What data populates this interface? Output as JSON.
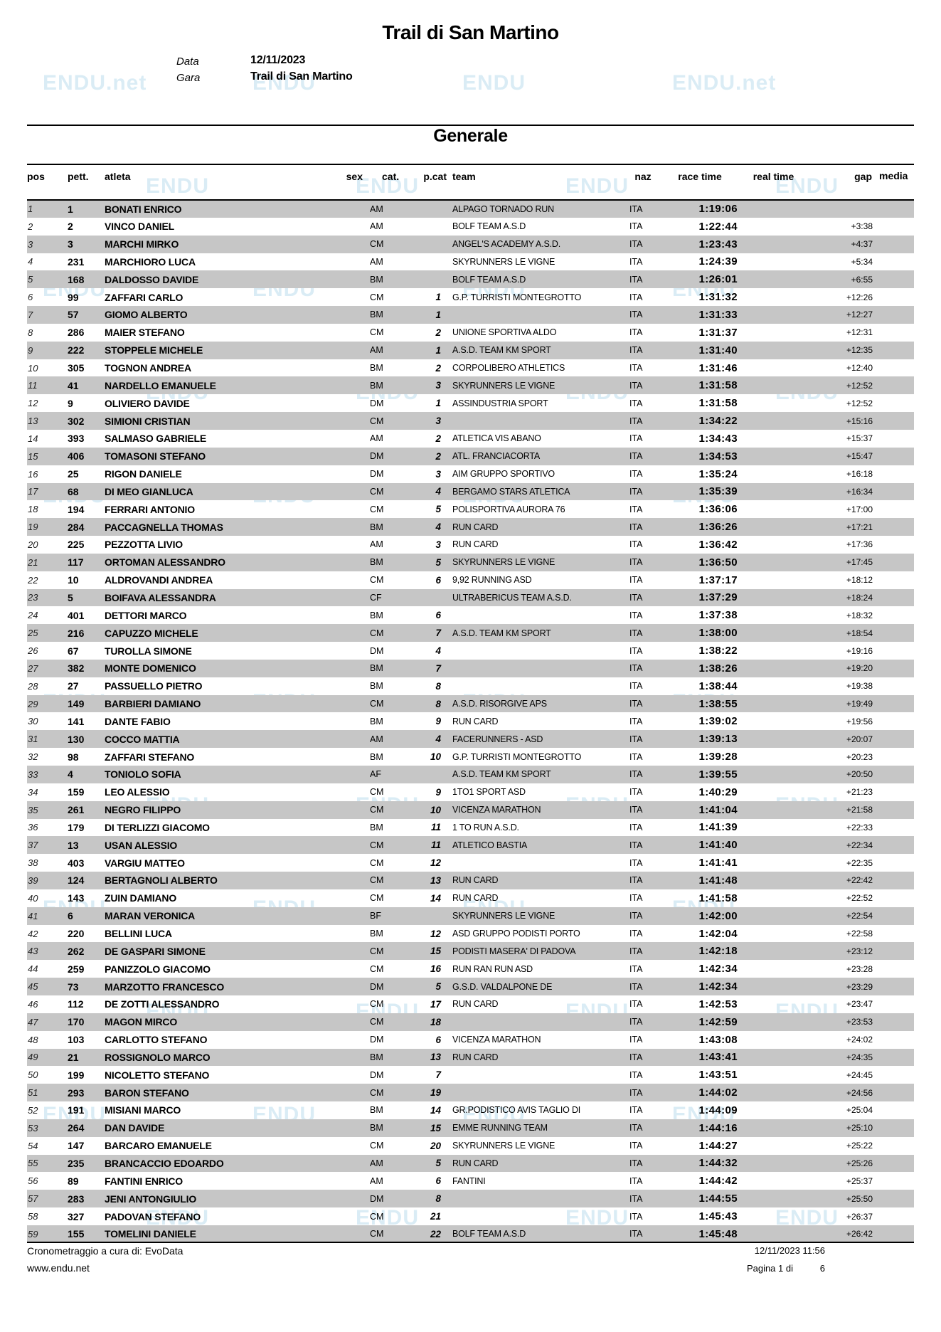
{
  "header": {
    "title": "Trail di San Martino",
    "date_label": "Data",
    "date_value": "12/11/2023",
    "race_label": "Gara",
    "race_value": "Trail di San Martino"
  },
  "section": {
    "title": "Generale"
  },
  "watermark": {
    "text": "ENDU",
    "corner_text": "ENDU.net"
  },
  "colors": {
    "row_stripe": "#c6c6c6",
    "watermark": "#9fcfe6"
  },
  "table": {
    "columns": [
      "pos",
      "pett.",
      "atleta",
      "sex",
      "cat.",
      "p.cat",
      "team",
      "naz",
      "race time",
      "real time",
      "gap",
      "media"
    ],
    "rows": [
      [
        "1",
        "1",
        "BONATI ENRICO",
        "",
        "AM",
        "",
        "ALPAGO TORNADO RUN",
        "ITA",
        "1:19:06",
        "",
        "",
        ""
      ],
      [
        "2",
        "2",
        "VINCO DANIEL",
        "",
        "AM",
        "",
        "BOLF TEAM A.S.D",
        "ITA",
        "1:22:44",
        "",
        "+3:38",
        ""
      ],
      [
        "3",
        "3",
        "MARCHI MIRKO",
        "",
        "CM",
        "",
        "ANGEL'S ACADEMY A.S.D.",
        "ITA",
        "1:23:43",
        "",
        "+4:37",
        ""
      ],
      [
        "4",
        "231",
        "MARCHIORO LUCA",
        "",
        "AM",
        "",
        "SKYRUNNERS LE VIGNE",
        "ITA",
        "1:24:39",
        "",
        "+5:34",
        ""
      ],
      [
        "5",
        "168",
        "DALDOSSO DAVIDE",
        "",
        "BM",
        "",
        "BOLF TEAM A.S.D",
        "ITA",
        "1:26:01",
        "",
        "+6:55",
        ""
      ],
      [
        "6",
        "99",
        "ZAFFARI CARLO",
        "",
        "CM",
        "1",
        "G.P. TURRISTI MONTEGROTTO",
        "ITA",
        "1:31:32",
        "",
        "+12:26",
        ""
      ],
      [
        "7",
        "57",
        "GIOMO ALBERTO",
        "",
        "BM",
        "1",
        "",
        "ITA",
        "1:31:33",
        "",
        "+12:27",
        ""
      ],
      [
        "8",
        "286",
        "MAIER STEFANO",
        "",
        "CM",
        "2",
        "UNIONE SPORTIVA ALDO",
        "ITA",
        "1:31:37",
        "",
        "+12:31",
        ""
      ],
      [
        "9",
        "222",
        "STOPPELE MICHELE",
        "",
        "AM",
        "1",
        "A.S.D. TEAM KM SPORT",
        "ITA",
        "1:31:40",
        "",
        "+12:35",
        ""
      ],
      [
        "10",
        "305",
        "TOGNON ANDREA",
        "",
        "BM",
        "2",
        "CORPOLIBERO ATHLETICS",
        "ITA",
        "1:31:46",
        "",
        "+12:40",
        ""
      ],
      [
        "11",
        "41",
        "NARDELLO EMANUELE",
        "",
        "BM",
        "3",
        "SKYRUNNERS LE VIGNE",
        "ITA",
        "1:31:58",
        "",
        "+12:52",
        ""
      ],
      [
        "12",
        "9",
        "OLIVIERO DAVIDE",
        "",
        "DM",
        "1",
        "ASSINDUSTRIA SPORT",
        "ITA",
        "1:31:58",
        "",
        "+12:52",
        ""
      ],
      [
        "13",
        "302",
        "SIMIONI CRISTIAN",
        "",
        "CM",
        "3",
        "",
        "ITA",
        "1:34:22",
        "",
        "+15:16",
        ""
      ],
      [
        "14",
        "393",
        "SALMASO GABRIELE",
        "",
        "AM",
        "2",
        "ATLETICA VIS ABANO",
        "ITA",
        "1:34:43",
        "",
        "+15:37",
        ""
      ],
      [
        "15",
        "406",
        "TOMASONI STEFANO",
        "",
        "DM",
        "2",
        "ATL. FRANCIACORTA",
        "ITA",
        "1:34:53",
        "",
        "+15:47",
        ""
      ],
      [
        "16",
        "25",
        "RIGON DANIELE",
        "",
        "DM",
        "3",
        "AIM GRUPPO SPORTIVO",
        "ITA",
        "1:35:24",
        "",
        "+16:18",
        ""
      ],
      [
        "17",
        "68",
        "DI MEO GIANLUCA",
        "",
        "CM",
        "4",
        "BERGAMO STARS ATLETICA",
        "ITA",
        "1:35:39",
        "",
        "+16:34",
        ""
      ],
      [
        "18",
        "194",
        "FERRARI ANTONIO",
        "",
        "CM",
        "5",
        "POLISPORTIVA AURORA 76",
        "ITA",
        "1:36:06",
        "",
        "+17:00",
        ""
      ],
      [
        "19",
        "284",
        "PACCAGNELLA THOMAS",
        "",
        "BM",
        "4",
        "RUN CARD",
        "ITA",
        "1:36:26",
        "",
        "+17:21",
        ""
      ],
      [
        "20",
        "225",
        "PEZZOTTA LIVIO",
        "",
        "AM",
        "3",
        "RUN CARD",
        "ITA",
        "1:36:42",
        "",
        "+17:36",
        ""
      ],
      [
        "21",
        "117",
        "ORTOMAN ALESSANDRO",
        "",
        "BM",
        "5",
        "SKYRUNNERS LE VIGNE",
        "ITA",
        "1:36:50",
        "",
        "+17:45",
        ""
      ],
      [
        "22",
        "10",
        "ALDROVANDI ANDREA",
        "",
        "CM",
        "6",
        "9,92 RUNNING ASD",
        "ITA",
        "1:37:17",
        "",
        "+18:12",
        ""
      ],
      [
        "23",
        "5",
        "BOIFAVA ALESSANDRA",
        "",
        "CF",
        "",
        "ULTRABERICUS TEAM A.S.D.",
        "ITA",
        "1:37:29",
        "",
        "+18:24",
        ""
      ],
      [
        "24",
        "401",
        "DETTORI MARCO",
        "",
        "BM",
        "6",
        "",
        "ITA",
        "1:37:38",
        "",
        "+18:32",
        ""
      ],
      [
        "25",
        "216",
        "CAPUZZO MICHELE",
        "",
        "CM",
        "7",
        "A.S.D. TEAM KM SPORT",
        "ITA",
        "1:38:00",
        "",
        "+18:54",
        ""
      ],
      [
        "26",
        "67",
        "TUROLLA SIMONE",
        "",
        "DM",
        "4",
        "",
        "ITA",
        "1:38:22",
        "",
        "+19:16",
        ""
      ],
      [
        "27",
        "382",
        "MONTE DOMENICO",
        "",
        "BM",
        "7",
        "",
        "ITA",
        "1:38:26",
        "",
        "+19:20",
        ""
      ],
      [
        "28",
        "27",
        "PASSUELLO PIETRO",
        "",
        "BM",
        "8",
        "",
        "ITA",
        "1:38:44",
        "",
        "+19:38",
        ""
      ],
      [
        "29",
        "149",
        "BARBIERI DAMIANO",
        "",
        "CM",
        "8",
        "A.S.D. RISORGIVE APS",
        "ITA",
        "1:38:55",
        "",
        "+19:49",
        ""
      ],
      [
        "30",
        "141",
        "DANTE FABIO",
        "",
        "BM",
        "9",
        "RUN CARD",
        "ITA",
        "1:39:02",
        "",
        "+19:56",
        ""
      ],
      [
        "31",
        "130",
        "COCCO MATTIA",
        "",
        "AM",
        "4",
        "FACERUNNERS - ASD",
        "ITA",
        "1:39:13",
        "",
        "+20:07",
        ""
      ],
      [
        "32",
        "98",
        "ZAFFARI STEFANO",
        "",
        "BM",
        "10",
        "G.P. TURRISTI MONTEGROTTO",
        "ITA",
        "1:39:28",
        "",
        "+20:23",
        ""
      ],
      [
        "33",
        "4",
        "TONIOLO SOFIA",
        "",
        "AF",
        "",
        "A.S.D. TEAM KM SPORT",
        "ITA",
        "1:39:55",
        "",
        "+20:50",
        ""
      ],
      [
        "34",
        "159",
        "LEO ALESSIO",
        "",
        "CM",
        "9",
        "1TO1 SPORT ASD",
        "ITA",
        "1:40:29",
        "",
        "+21:23",
        ""
      ],
      [
        "35",
        "261",
        "NEGRO FILIPPO",
        "",
        "CM",
        "10",
        "VICENZA MARATHON",
        "ITA",
        "1:41:04",
        "",
        "+21:58",
        ""
      ],
      [
        "36",
        "179",
        "DI TERLIZZI GIACOMO",
        "",
        "BM",
        "11",
        "1 TO RUN A.S.D.",
        "ITA",
        "1:41:39",
        "",
        "+22:33",
        ""
      ],
      [
        "37",
        "13",
        "USAN ALESSIO",
        "",
        "CM",
        "11",
        "ATLETICO BASTIA",
        "ITA",
        "1:41:40",
        "",
        "+22:34",
        ""
      ],
      [
        "38",
        "403",
        "VARGIU MATTEO",
        "",
        "CM",
        "12",
        "",
        "ITA",
        "1:41:41",
        "",
        "+22:35",
        ""
      ],
      [
        "39",
        "124",
        "BERTAGNOLI ALBERTO",
        "",
        "CM",
        "13",
        "RUN CARD",
        "ITA",
        "1:41:48",
        "",
        "+22:42",
        ""
      ],
      [
        "40",
        "143",
        "ZUIN DAMIANO",
        "",
        "CM",
        "14",
        "RUN CARD",
        "ITA",
        "1:41:58",
        "",
        "+22:52",
        ""
      ],
      [
        "41",
        "6",
        "MARAN VERONICA",
        "",
        "BF",
        "",
        "SKYRUNNERS LE VIGNE",
        "ITA",
        "1:42:00",
        "",
        "+22:54",
        ""
      ],
      [
        "42",
        "220",
        "BELLINI LUCA",
        "",
        "BM",
        "12",
        "ASD GRUPPO PODISTI PORTO",
        "ITA",
        "1:42:04",
        "",
        "+22:58",
        ""
      ],
      [
        "43",
        "262",
        "DE GASPARI SIMONE",
        "",
        "CM",
        "15",
        "PODISTI MASERA' DI PADOVA",
        "ITA",
        "1:42:18",
        "",
        "+23:12",
        ""
      ],
      [
        "44",
        "259",
        "PANIZZOLO GIACOMO",
        "",
        "CM",
        "16",
        "RUN RAN RUN ASD",
        "ITA",
        "1:42:34",
        "",
        "+23:28",
        ""
      ],
      [
        "45",
        "73",
        "MARZOTTO FRANCESCO",
        "",
        "DM",
        "5",
        "G.S.D. VALDALPONE DE",
        "ITA",
        "1:42:34",
        "",
        "+23:29",
        ""
      ],
      [
        "46",
        "112",
        "DE ZOTTI ALESSANDRO",
        "",
        "CM",
        "17",
        "RUN CARD",
        "ITA",
        "1:42:53",
        "",
        "+23:47",
        ""
      ],
      [
        "47",
        "170",
        "MAGON MIRCO",
        "",
        "CM",
        "18",
        "",
        "ITA",
        "1:42:59",
        "",
        "+23:53",
        ""
      ],
      [
        "48",
        "103",
        "CARLOTTO STEFANO",
        "",
        "DM",
        "6",
        "VICENZA MARATHON",
        "ITA",
        "1:43:08",
        "",
        "+24:02",
        ""
      ],
      [
        "49",
        "21",
        "ROSSIGNOLO MARCO",
        "",
        "BM",
        "13",
        "RUN CARD",
        "ITA",
        "1:43:41",
        "",
        "+24:35",
        ""
      ],
      [
        "50",
        "199",
        "NICOLETTO STEFANO",
        "",
        "DM",
        "7",
        "",
        "ITA",
        "1:43:51",
        "",
        "+24:45",
        ""
      ],
      [
        "51",
        "293",
        "BARON STEFANO",
        "",
        "CM",
        "19",
        "",
        "ITA",
        "1:44:02",
        "",
        "+24:56",
        ""
      ],
      [
        "52",
        "191",
        "MISIANI MARCO",
        "",
        "BM",
        "14",
        "GR.PODISTICO AVIS TAGLIO DI",
        "ITA",
        "1:44:09",
        "",
        "+25:04",
        ""
      ],
      [
        "53",
        "264",
        "DAN DAVIDE",
        "",
        "BM",
        "15",
        "EMME RUNNING TEAM",
        "ITA",
        "1:44:16",
        "",
        "+25:10",
        ""
      ],
      [
        "54",
        "147",
        "BARCARO EMANUELE",
        "",
        "CM",
        "20",
        "SKYRUNNERS LE VIGNE",
        "ITA",
        "1:44:27",
        "",
        "+25:22",
        ""
      ],
      [
        "55",
        "235",
        "BRANCACCIO EDOARDO",
        "",
        "AM",
        "5",
        "RUN CARD",
        "ITA",
        "1:44:32",
        "",
        "+25:26",
        ""
      ],
      [
        "56",
        "89",
        "FANTINI ENRICO",
        "",
        "AM",
        "6",
        "FANTINI",
        "ITA",
        "1:44:42",
        "",
        "+25:37",
        ""
      ],
      [
        "57",
        "283",
        "JENI ANTONGIULIO",
        "",
        "DM",
        "8",
        "",
        "ITA",
        "1:44:55",
        "",
        "+25:50",
        ""
      ],
      [
        "58",
        "327",
        "PADOVAN STEFANO",
        "",
        "CM",
        "21",
        "",
        "ITA",
        "1:45:43",
        "",
        "+26:37",
        ""
      ],
      [
        "59",
        "155",
        "TOMELINI DANIELE",
        "",
        "CM",
        "22",
        "BOLF TEAM A.S.D",
        "ITA",
        "1:45:48",
        "",
        "+26:42",
        ""
      ]
    ]
  },
  "footer": {
    "timing": "Cronometraggio a cura di: EvoData",
    "website": "www.endu.net",
    "datetime": "12/11/2023 11:56",
    "page_label": "Pagina 1 di",
    "page_total": "6"
  }
}
